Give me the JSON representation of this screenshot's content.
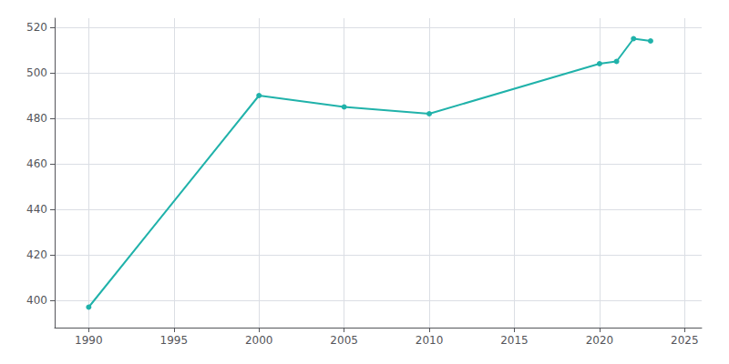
{
  "chart_data": {
    "type": "line",
    "x": [
      1990,
      2000,
      2005,
      2010,
      2020,
      2021,
      2022,
      2023
    ],
    "values": [
      397,
      490,
      485,
      482,
      504,
      505,
      515,
      514
    ],
    "color": "#20B2AA",
    "marker": "circle",
    "xlim": [
      1988,
      2026
    ],
    "ylim": [
      388,
      524
    ],
    "xticks": [
      1990,
      1995,
      2000,
      2005,
      2010,
      2015,
      2020,
      2025
    ],
    "yticks": [
      400,
      420,
      440,
      460,
      480,
      500,
      520
    ],
    "grid": true
  }
}
